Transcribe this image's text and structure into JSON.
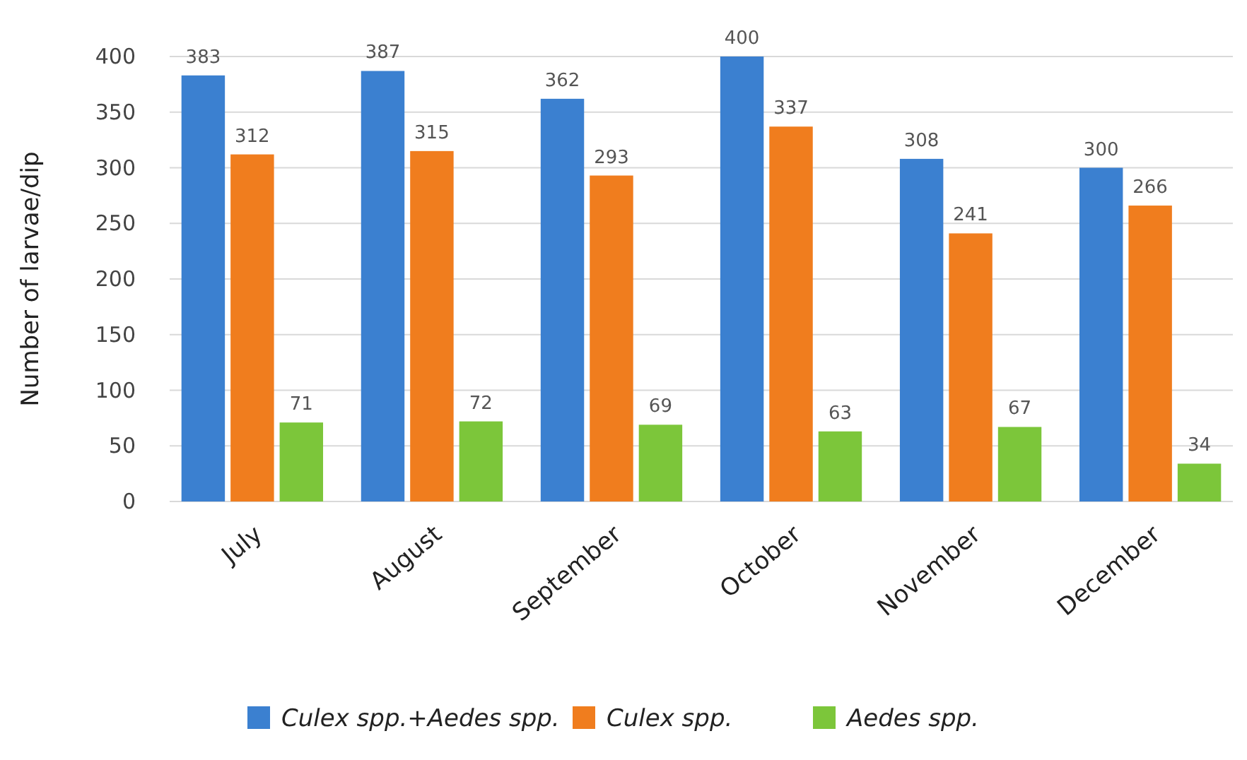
{
  "chart_data": {
    "type": "bar",
    "ylabel": "Number of larvae/dip",
    "categories": [
      "July",
      "August",
      "September",
      "October",
      "November",
      "December"
    ],
    "series": [
      {
        "name": "Culex spp.+Aedes spp.",
        "color": "#3b80d0",
        "values": [
          383,
          387,
          362,
          400,
          308,
          300
        ]
      },
      {
        "name": "Culex spp.",
        "color": "#f07d1e",
        "values": [
          312,
          315,
          293,
          337,
          241,
          266
        ]
      },
      {
        "name": "Aedes spp.",
        "color": "#7cc63a",
        "values": [
          71,
          72,
          69,
          63,
          67,
          34
        ]
      }
    ],
    "ylim": [
      0,
      400
    ],
    "yticks": [
      0,
      50,
      100,
      150,
      200,
      250,
      300,
      350,
      400
    ],
    "grid": "y",
    "legend": "bottom",
    "data_labels": true
  }
}
